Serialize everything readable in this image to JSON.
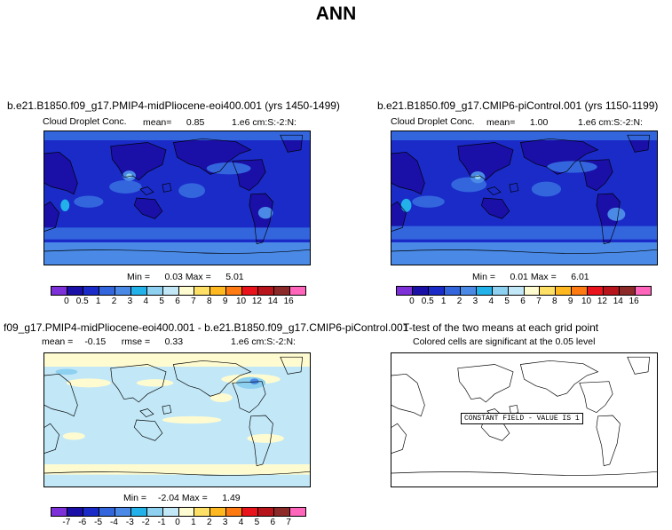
{
  "title": "ANN",
  "panels": {
    "p1": {
      "title": "b.e21.B1850.f09_g17.PMIP4-midPliocene-eoi400.001 (yrs 1450-1499)",
      "variable": "Cloud Droplet Conc.",
      "mean_label": "mean=",
      "mean_value": "0.85",
      "units": "1.e6 cm:S:-2:N:",
      "min_label": "Min =",
      "min_value": "0.03",
      "max_label": "Max =",
      "max_value": "5.01"
    },
    "p2": {
      "title": "b.e21.B1850.f09_g17.CMIP6-piControl.001 (yrs 1150-1199)",
      "variable": "Cloud Droplet Conc.",
      "mean_label": "mean=",
      "mean_value": "1.00",
      "units": "1.e6 cm:S:-2:N:",
      "min_label": "Min =",
      "min_value": "0.01",
      "max_label": "Max =",
      "max_value": "6.01"
    },
    "p3": {
      "title": "f09_g17.PMIP4-midPliocene-eoi400.001 - b.e21.B1850.f09_g17.CMIP6-piControl.001",
      "mean_label": "mean =",
      "mean_value": "-0.15",
      "rmse_label": "rmse =",
      "rmse_value": "0.33",
      "units": "1.e6 cm:S:-2:N:",
      "min_label": "Min =",
      "min_value": "-2.04",
      "max_label": "Max =",
      "max_value": "1.49"
    },
    "p4": {
      "title": "T-test of the two means at each grid point",
      "subtitle": "Colored cells are significant at the 0.05 level",
      "notice": "CONSTANT FIELD - VALUE IS 1"
    }
  },
  "colorbar_abs": {
    "labels": [
      "0",
      "0.5",
      "1",
      "2",
      "3",
      "4",
      "5",
      "6",
      "7",
      "8",
      "9",
      "10",
      "12",
      "14",
      "16"
    ],
    "colors": [
      "#7d2fd8",
      "#1a0fa6",
      "#1a2bc8",
      "#3366dd",
      "#4a8ae6",
      "#22b1e8",
      "#8ed0f0",
      "#c2e8f8",
      "#fffbd0",
      "#ffe066",
      "#ffb820",
      "#ff7a10",
      "#e8131b",
      "#b8141c",
      "#8c2a2a",
      "#ff66bb"
    ]
  },
  "colorbar_diff": {
    "labels": [
      "-7",
      "-6",
      "-5",
      "-4",
      "-3",
      "-2",
      "-1",
      "0",
      "1",
      "2",
      "3",
      "4",
      "5",
      "6",
      "7"
    ],
    "colors": [
      "#7d2fd8",
      "#1a0fa6",
      "#1a2bc8",
      "#3366dd",
      "#4a8ae6",
      "#22b1e8",
      "#8ed0f0",
      "#c2e8f8",
      "#fffbd0",
      "#ffe066",
      "#ffb820",
      "#ff7a10",
      "#e8131b",
      "#b8141c",
      "#8c2a2a",
      "#ff66bb"
    ]
  },
  "map_colors": {
    "abs_ocean": "#1a2bc8",
    "abs_mid": "#3366dd",
    "abs_high": "#4a8ae6",
    "abs_light": "#22b1e8",
    "abs_peak": "#8ed0f0",
    "abs_land": "#1a0fa6",
    "diff_base": "#c2e8f8",
    "diff_pos": "#fffbd0",
    "diff_neg": "#8ed0f0",
    "diff_neg2": "#4a8ae6"
  }
}
